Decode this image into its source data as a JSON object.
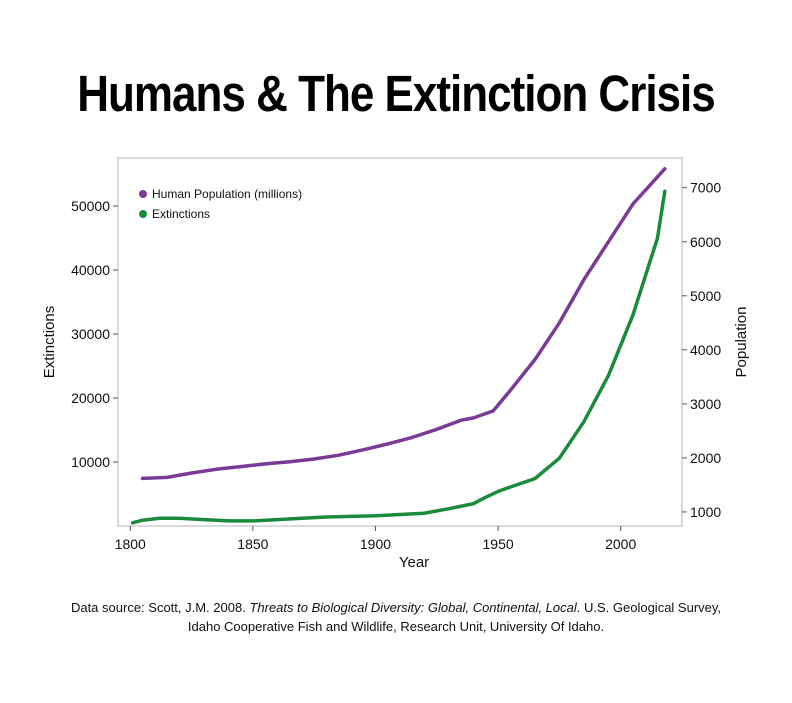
{
  "title": "Humans & The Extinction Crisis",
  "source": {
    "prefix": "Data source: Scott, J.M. 2008. ",
    "italic": "Threats to Biological Diversity: Global, Continental, Local",
    "suffix": ". U.S. Geological Survey,",
    "line2": "Idaho Cooperative Fish and Wildlife, Research Unit, University Of Idaho."
  },
  "colors": {
    "population": "#7a3b96",
    "extinctions": "#1a8a3c"
  },
  "chart_data": {
    "type": "line",
    "xlabel": "Year",
    "ylabel_left": "Extinctions",
    "ylabel_right": "Population",
    "xlim": [
      1795,
      2025
    ],
    "ylim_left": [
      0,
      57500
    ],
    "ylim_right": [
      740,
      7550
    ],
    "x_ticks": [
      1800,
      1850,
      1900,
      1950,
      2000
    ],
    "y_ticks_left": [
      10000,
      20000,
      30000,
      40000,
      50000
    ],
    "y_ticks_right": [
      1000,
      2000,
      3000,
      4000,
      5000,
      6000,
      7000
    ],
    "legend_position": "top-left",
    "series": [
      {
        "name": "Human Population (millions)",
        "axis": "right",
        "x": [
          1805,
          1815,
          1825,
          1835,
          1845,
          1855,
          1865,
          1875,
          1885,
          1895,
          1905,
          1915,
          1925,
          1935,
          1940,
          1948,
          1955,
          1965,
          1975,
          1985,
          1995,
          2005,
          2018
        ],
        "y": [
          1620,
          1640,
          1720,
          1790,
          1840,
          1890,
          1930,
          1980,
          2050,
          2150,
          2260,
          2380,
          2530,
          2700,
          2740,
          2870,
          3250,
          3820,
          4500,
          5300,
          6000,
          6700,
          7350
        ]
      },
      {
        "name": "Extinctions",
        "axis": "left",
        "x": [
          1801,
          1805,
          1812,
          1820,
          1830,
          1840,
          1850,
          1860,
          1870,
          1880,
          1890,
          1900,
          1910,
          1920,
          1930,
          1940,
          1945,
          1950,
          1955,
          1965,
          1975,
          1985,
          1995,
          2005,
          2015,
          2018
        ],
        "y": [
          500,
          900,
          1200,
          1200,
          1000,
          800,
          800,
          1000,
          1200,
          1400,
          1500,
          1600,
          1800,
          2000,
          2700,
          3500,
          4500,
          5400,
          6100,
          7400,
          10600,
          16300,
          23500,
          33000,
          45000,
          52300
        ]
      }
    ]
  }
}
